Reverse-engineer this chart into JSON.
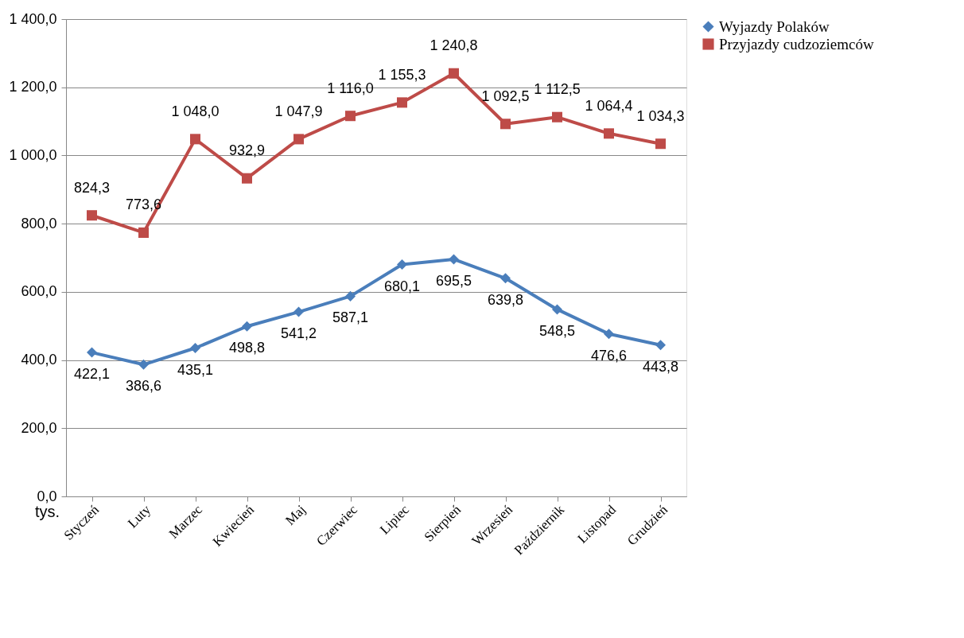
{
  "chart_data": {
    "type": "line",
    "categories": [
      "Styczeń",
      "Luty",
      "Marzec",
      "Kwiecień",
      "Maj",
      "Czerwiec",
      "Lipiec",
      "Sierpień",
      "Wrzesień",
      "Październik",
      "Listopad",
      "Grudzień"
    ],
    "ylabel": "tys.",
    "series": [
      {
        "name": "Wyjazdy Polaków",
        "color": "#4a7ebb",
        "marker": "diamond",
        "values": [
          422.1,
          386.6,
          435.1,
          498.8,
          541.2,
          587.1,
          680.1,
          695.5,
          639.8,
          548.5,
          476.6,
          443.8
        ],
        "value_labels": [
          "422,1",
          "386,6",
          "435,1",
          "498,8",
          "541,2",
          "587,1",
          "680,1",
          "695,5",
          "639,8",
          "548,5",
          "476,6",
          "443,8"
        ]
      },
      {
        "name": "Przyjazdy cudzoziemców",
        "color": "#be4b48",
        "marker": "square",
        "values": [
          824.3,
          773.6,
          1048.0,
          932.9,
          1047.9,
          1116.0,
          1155.3,
          1240.8,
          1092.5,
          1112.5,
          1064.4,
          1034.3
        ],
        "value_labels": [
          "824,3",
          "773,6",
          "1 048,0",
          "932,9",
          "1 047,9",
          "1 116,0",
          "1 155,3",
          "1 240,8",
          "1 092,5",
          "1 112,5",
          "1 064,4",
          "1 034,3"
        ]
      }
    ],
    "ylim": [
      0,
      1400
    ],
    "yticks": [
      {
        "value": 0,
        "label": "0,0"
      },
      {
        "value": 200,
        "label": "200,0"
      },
      {
        "value": 400,
        "label": "400,0"
      },
      {
        "value": 600,
        "label": "600,0"
      },
      {
        "value": 800,
        "label": "800,0"
      },
      {
        "value": 1000,
        "label": "1 000,0"
      },
      {
        "value": 1200,
        "label": "1 200,0"
      },
      {
        "value": 1400,
        "label": "1 400,0"
      }
    ],
    "grid": "y",
    "legend": "right",
    "line_style": "solid"
  }
}
